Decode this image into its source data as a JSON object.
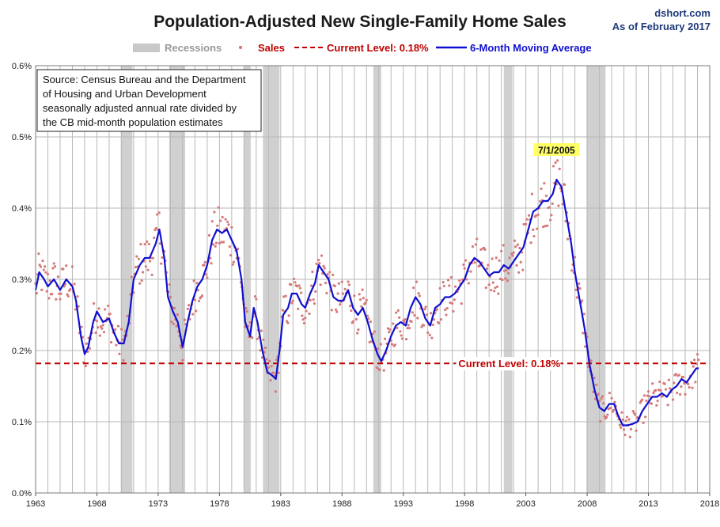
{
  "chart_data": {
    "type": "line",
    "title": "Population-Adjusted New Single-Family Home Sales",
    "source_site": "dshort.com",
    "as_of": "As of February 2017",
    "legend": {
      "recessions": "Recessions",
      "sales": "Sales",
      "current": "Current Level: 0.18%",
      "moving_average": "6-Month Moving Average"
    },
    "note_lines": [
      "Source: Census Bureau and the Department",
      "of Housing and Urban Development",
      "seasonally adjusted annual rate divided by",
      "the CB mid-month population estimates"
    ],
    "x_range": [
      1963,
      2018
    ],
    "x_ticks": [
      1963,
      1968,
      1973,
      1978,
      1983,
      1988,
      1993,
      1998,
      2003,
      2008,
      2013,
      2018
    ],
    "ylim": [
      0,
      0.6
    ],
    "y_ticks": [
      {
        "value": 0.0,
        "label": "0.0%"
      },
      {
        "value": 0.1,
        "label": "0.1%"
      },
      {
        "value": 0.2,
        "label": "0.2%"
      },
      {
        "value": 0.3,
        "label": "0.3%"
      },
      {
        "value": 0.4,
        "label": "0.4%"
      },
      {
        "value": 0.5,
        "label": "0.5%"
      },
      {
        "value": 0.6,
        "label": "0.6%"
      }
    ],
    "current_level": 0.182,
    "current_label": "Current Level: 0.18%",
    "peak_annotation": {
      "label": "7/1/2005",
      "x": 2005.5,
      "y": 0.47
    },
    "recessions": [
      [
        1969.95,
        1970.9
      ],
      [
        1973.9,
        1975.2
      ],
      [
        1980.0,
        1980.55
      ],
      [
        1981.55,
        1982.9
      ],
      [
        1990.55,
        1991.2
      ],
      [
        2001.2,
        2001.9
      ],
      [
        2007.95,
        2009.5
      ]
    ],
    "moving_average": {
      "name": "6-Month Moving Average",
      "points": [
        [
          1963.0,
          0.285
        ],
        [
          1963.3,
          0.31
        ],
        [
          1963.7,
          0.3
        ],
        [
          1964.0,
          0.29
        ],
        [
          1964.5,
          0.3
        ],
        [
          1965.0,
          0.285
        ],
        [
          1965.5,
          0.3
        ],
        [
          1966.0,
          0.29
        ],
        [
          1966.3,
          0.27
        ],
        [
          1966.7,
          0.22
        ],
        [
          1967.0,
          0.195
        ],
        [
          1967.3,
          0.205
        ],
        [
          1967.7,
          0.24
        ],
        [
          1968.0,
          0.255
        ],
        [
          1968.5,
          0.24
        ],
        [
          1969.0,
          0.245
        ],
        [
          1969.4,
          0.225
        ],
        [
          1969.8,
          0.21
        ],
        [
          1970.2,
          0.21
        ],
        [
          1970.6,
          0.24
        ],
        [
          1971.0,
          0.3
        ],
        [
          1971.5,
          0.32
        ],
        [
          1971.9,
          0.33
        ],
        [
          1972.3,
          0.33
        ],
        [
          1972.8,
          0.35
        ],
        [
          1973.1,
          0.37
        ],
        [
          1973.5,
          0.33
        ],
        [
          1973.8,
          0.275
        ],
        [
          1974.2,
          0.255
        ],
        [
          1974.6,
          0.24
        ],
        [
          1975.0,
          0.205
        ],
        [
          1975.4,
          0.24
        ],
        [
          1975.8,
          0.27
        ],
        [
          1976.2,
          0.29
        ],
        [
          1976.6,
          0.3
        ],
        [
          1977.0,
          0.32
        ],
        [
          1977.4,
          0.355
        ],
        [
          1977.8,
          0.37
        ],
        [
          1978.2,
          0.365
        ],
        [
          1978.6,
          0.37
        ],
        [
          1979.0,
          0.355
        ],
        [
          1979.4,
          0.34
        ],
        [
          1979.8,
          0.3
        ],
        [
          1980.1,
          0.24
        ],
        [
          1980.5,
          0.22
        ],
        [
          1980.8,
          0.26
        ],
        [
          1981.1,
          0.24
        ],
        [
          1981.5,
          0.2
        ],
        [
          1981.9,
          0.17
        ],
        [
          1982.3,
          0.165
        ],
        [
          1982.6,
          0.16
        ],
        [
          1982.9,
          0.2
        ],
        [
          1983.2,
          0.25
        ],
        [
          1983.6,
          0.26
        ],
        [
          1983.9,
          0.28
        ],
        [
          1984.3,
          0.28
        ],
        [
          1984.7,
          0.265
        ],
        [
          1985.0,
          0.26
        ],
        [
          1985.4,
          0.28
        ],
        [
          1985.8,
          0.295
        ],
        [
          1986.1,
          0.32
        ],
        [
          1986.5,
          0.31
        ],
        [
          1986.9,
          0.3
        ],
        [
          1987.3,
          0.275
        ],
        [
          1987.7,
          0.27
        ],
        [
          1988.1,
          0.27
        ],
        [
          1988.5,
          0.285
        ],
        [
          1988.9,
          0.26
        ],
        [
          1989.3,
          0.25
        ],
        [
          1989.7,
          0.26
        ],
        [
          1990.1,
          0.24
        ],
        [
          1990.5,
          0.215
        ],
        [
          1990.9,
          0.195
        ],
        [
          1991.2,
          0.185
        ],
        [
          1991.6,
          0.2
        ],
        [
          1992.0,
          0.22
        ],
        [
          1992.4,
          0.235
        ],
        [
          1992.8,
          0.24
        ],
        [
          1993.2,
          0.235
        ],
        [
          1993.6,
          0.26
        ],
        [
          1994.0,
          0.275
        ],
        [
          1994.4,
          0.265
        ],
        [
          1994.8,
          0.245
        ],
        [
          1995.2,
          0.235
        ],
        [
          1995.6,
          0.26
        ],
        [
          1996.0,
          0.265
        ],
        [
          1996.4,
          0.275
        ],
        [
          1996.8,
          0.275
        ],
        [
          1997.2,
          0.28
        ],
        [
          1997.6,
          0.29
        ],
        [
          1998.0,
          0.3
        ],
        [
          1998.4,
          0.32
        ],
        [
          1998.8,
          0.33
        ],
        [
          1999.2,
          0.325
        ],
        [
          1999.6,
          0.315
        ],
        [
          2000.0,
          0.305
        ],
        [
          2000.4,
          0.31
        ],
        [
          2000.8,
          0.31
        ],
        [
          2001.2,
          0.32
        ],
        [
          2001.6,
          0.315
        ],
        [
          2002.0,
          0.325
        ],
        [
          2002.4,
          0.335
        ],
        [
          2002.8,
          0.345
        ],
        [
          2003.2,
          0.37
        ],
        [
          2003.6,
          0.395
        ],
        [
          2004.0,
          0.4
        ],
        [
          2004.4,
          0.41
        ],
        [
          2004.8,
          0.41
        ],
        [
          2005.2,
          0.42
        ],
        [
          2005.5,
          0.44
        ],
        [
          2005.9,
          0.43
        ],
        [
          2006.3,
          0.39
        ],
        [
          2006.7,
          0.35
        ],
        [
          2007.0,
          0.31
        ],
        [
          2007.4,
          0.27
        ],
        [
          2007.8,
          0.23
        ],
        [
          2008.2,
          0.18
        ],
        [
          2008.6,
          0.145
        ],
        [
          2009.0,
          0.12
        ],
        [
          2009.4,
          0.115
        ],
        [
          2009.8,
          0.125
        ],
        [
          2010.2,
          0.125
        ],
        [
          2010.5,
          0.11
        ],
        [
          2010.9,
          0.095
        ],
        [
          2011.3,
          0.095
        ],
        [
          2011.7,
          0.097
        ],
        [
          2012.1,
          0.1
        ],
        [
          2012.5,
          0.115
        ],
        [
          2012.9,
          0.125
        ],
        [
          2013.3,
          0.135
        ],
        [
          2013.7,
          0.135
        ],
        [
          2014.1,
          0.14
        ],
        [
          2014.5,
          0.135
        ],
        [
          2014.9,
          0.145
        ],
        [
          2015.3,
          0.15
        ],
        [
          2015.7,
          0.16
        ],
        [
          2016.1,
          0.155
        ],
        [
          2016.5,
          0.165
        ],
        [
          2016.9,
          0.175
        ],
        [
          2017.1,
          0.175
        ]
      ]
    },
    "sales_series_name": "Sales"
  }
}
